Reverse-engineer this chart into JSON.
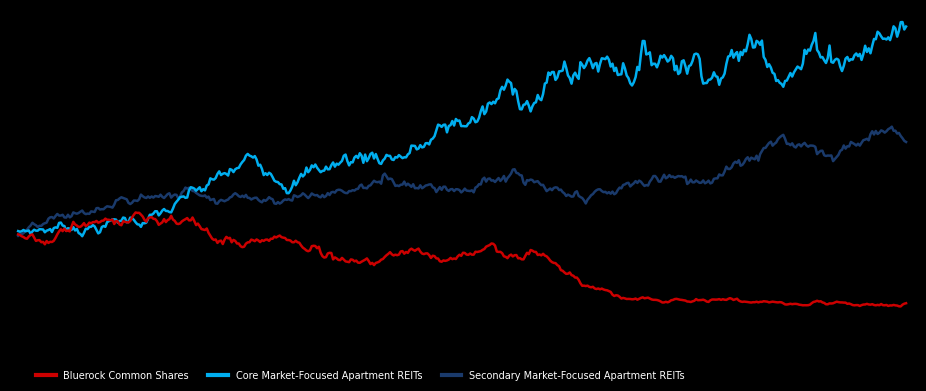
{
  "color_sky": "#00AEEF",
  "color_navy": "#1a3a6b",
  "color_red": "#CC0000",
  "background_color": "#000000",
  "linewidth": 1.8,
  "legend_items": [
    {
      "label": "Bluerock Common Shares",
      "color": "#CC0000"
    },
    {
      "label": "Core Market-Focused Apartment REITs",
      "color": "#00AEEF"
    },
    {
      "label": "Secondary Market-Focused Apartment REITs",
      "color": "#1a3a6b"
    }
  ]
}
